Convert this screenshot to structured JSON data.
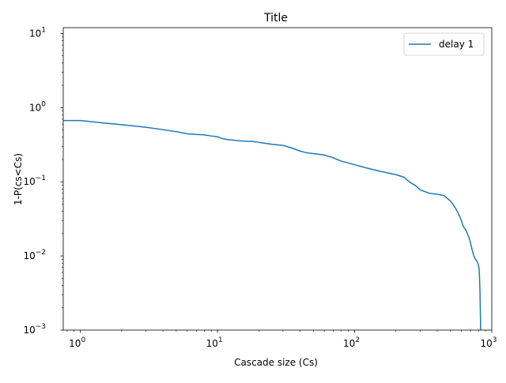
{
  "chart_data": {
    "type": "line",
    "title": "Title",
    "xlabel": "Cascade size (Cs)",
    "ylabel": "1-P(cs<Cs)",
    "xscale": "log",
    "yscale": "log",
    "xlim": [
      0.75,
      1000
    ],
    "ylim": [
      0.001,
      12
    ],
    "grid": false,
    "legend_position": "top-right",
    "x_ticks": [
      {
        "value": 1,
        "base": "10",
        "exp": "0"
      },
      {
        "value": 10,
        "base": "10",
        "exp": "1"
      },
      {
        "value": 100,
        "base": "10",
        "exp": "2"
      },
      {
        "value": 1000,
        "base": "10",
        "exp": "3"
      }
    ],
    "y_ticks": [
      {
        "value": 0.001,
        "base": "10",
        "exp": "−3"
      },
      {
        "value": 0.01,
        "base": "10",
        "exp": "−2"
      },
      {
        "value": 0.1,
        "base": "10",
        "exp": "−1"
      },
      {
        "value": 1,
        "base": "10",
        "exp": "0"
      },
      {
        "value": 10,
        "base": "10",
        "exp": "1"
      }
    ],
    "series": [
      {
        "name": "delay 1",
        "color": "#1f77b4",
        "x": [
          0.75,
          1,
          1.5,
          2,
          3,
          4,
          5,
          6,
          7,
          8,
          9,
          10,
          11,
          12,
          15,
          18,
          20,
          25,
          30,
          35,
          40,
          45,
          50,
          60,
          70,
          80,
          100,
          120,
          150,
          180,
          200,
          230,
          250,
          280,
          300,
          350,
          400,
          450,
          500,
          520,
          540,
          560,
          580,
          600,
          620,
          650,
          680,
          700,
          720,
          740,
          760,
          780,
          800,
          810,
          820,
          830
        ],
        "y": [
          0.67,
          0.67,
          0.62,
          0.59,
          0.545,
          0.505,
          0.475,
          0.445,
          0.435,
          0.43,
          0.415,
          0.405,
          0.38,
          0.37,
          0.355,
          0.35,
          0.34,
          0.32,
          0.31,
          0.285,
          0.26,
          0.245,
          0.24,
          0.23,
          0.21,
          0.19,
          0.17,
          0.155,
          0.14,
          0.13,
          0.125,
          0.115,
          0.1,
          0.088,
          0.078,
          0.07,
          0.068,
          0.065,
          0.055,
          0.05,
          0.045,
          0.04,
          0.035,
          0.03,
          0.025,
          0.022,
          0.018,
          0.015,
          0.012,
          0.01,
          0.009,
          0.0085,
          0.0075,
          0.0065,
          0.0035,
          0.001
        ]
      }
    ]
  }
}
